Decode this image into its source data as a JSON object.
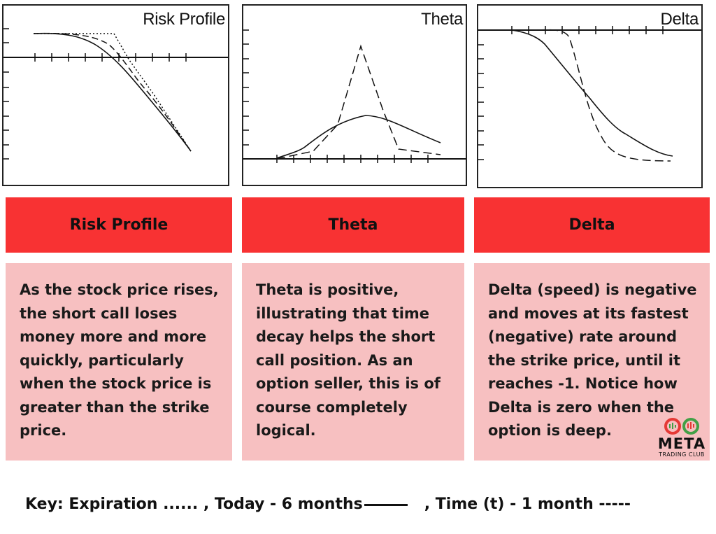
{
  "panels": [
    {
      "title": "Risk Profile",
      "header": "Risk Profile",
      "description": "As the stock price rises, the short call loses money more and more quickly, particularly when the stock price is greater than the strike price."
    },
    {
      "title": "Theta",
      "header": "Theta",
      "description": "Theta is positive, illustrating that time decay helps the short call position. As an option seller, this is of course completely logical."
    },
    {
      "title": "Delta",
      "header": "Delta",
      "description": "Delta (speed) is negative and moves at its fastest (negative) rate around the strike price, until it reaches -1. Notice how Delta is zero when the option is deep."
    }
  ],
  "key": {
    "prefix": "Key: Expiration ...... , Today - 6 months",
    "suffix": ", Time (t) - 1 month -----"
  },
  "logo": {
    "word": "META",
    "sub": "TRADING CLUB",
    "colors": [
      "#e53935",
      "#43a047"
    ]
  },
  "colors": {
    "header_bg": "#f83233",
    "desc_bg": "#f7c0c1",
    "ink": "#111111"
  }
}
